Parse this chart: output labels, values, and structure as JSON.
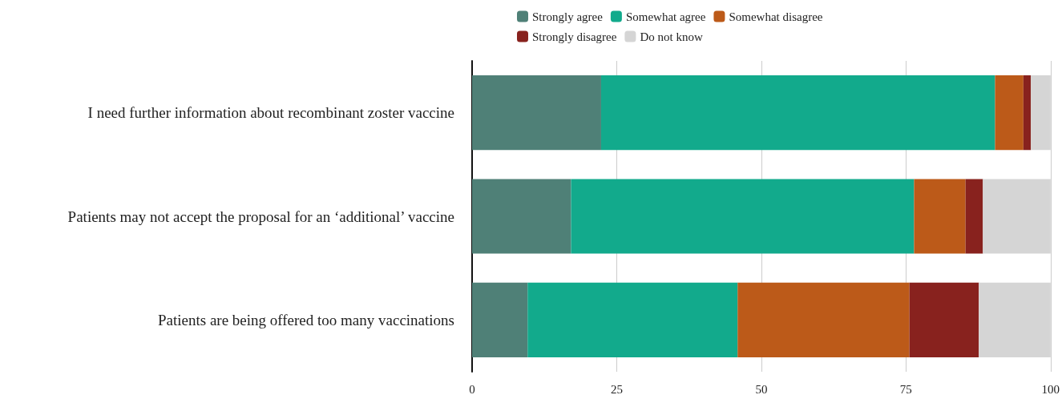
{
  "chart_data": {
    "type": "bar",
    "orientation": "horizontal",
    "stacked": true,
    "categories": [
      "I need further information about recombinant zoster vaccine",
      "Patients may not accept the proposal for an ‘additional’ vaccine",
      "Patients are being offered too many vaccinations"
    ],
    "series": [
      {
        "name": "Strongly agree",
        "color": "#4f8077",
        "values": [
          22.3,
          17.1,
          9.6
        ]
      },
      {
        "name": "Somewhat agree",
        "color": "#12aa8c",
        "values": [
          68.1,
          59.3,
          36.3
        ]
      },
      {
        "name": "Somewhat disagree",
        "color": "#bc5a19",
        "values": [
          4.9,
          8.9,
          29.7
        ]
      },
      {
        "name": "Strongly disagree",
        "color": "#88221e",
        "values": [
          1.3,
          3.0,
          12.0
        ]
      },
      {
        "name": "Do not know",
        "color": "#d5d5d5",
        "values": [
          3.4,
          11.7,
          12.4
        ]
      }
    ],
    "xlim": [
      0,
      100
    ],
    "xticks": [
      0,
      25,
      50,
      75,
      100
    ],
    "grid": "x",
    "legend": "top"
  }
}
